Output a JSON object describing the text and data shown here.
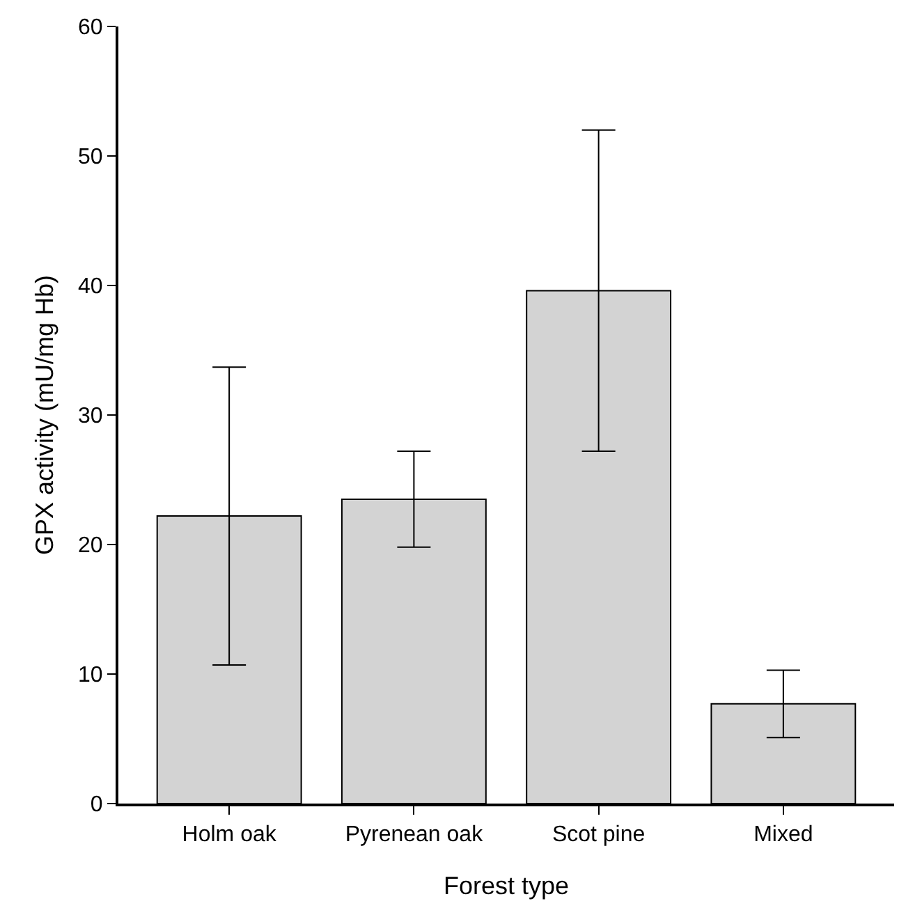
{
  "chart_data": {
    "type": "bar",
    "xlabel": "Forest type",
    "ylabel": "GPX activity (mU/mg Hb)",
    "categories": [
      "Holm oak",
      "Pyrenean oak",
      "Scot pine",
      "Mixed"
    ],
    "values": [
      22.2,
      23.5,
      39.6,
      7.7
    ],
    "errors": [
      11.5,
      3.7,
      12.4,
      2.6
    ],
    "color": "#d3d3d3",
    "ylim": [
      0,
      60
    ],
    "yticks": [
      0,
      10,
      20,
      30,
      40,
      50,
      60
    ],
    "grid": false
  }
}
